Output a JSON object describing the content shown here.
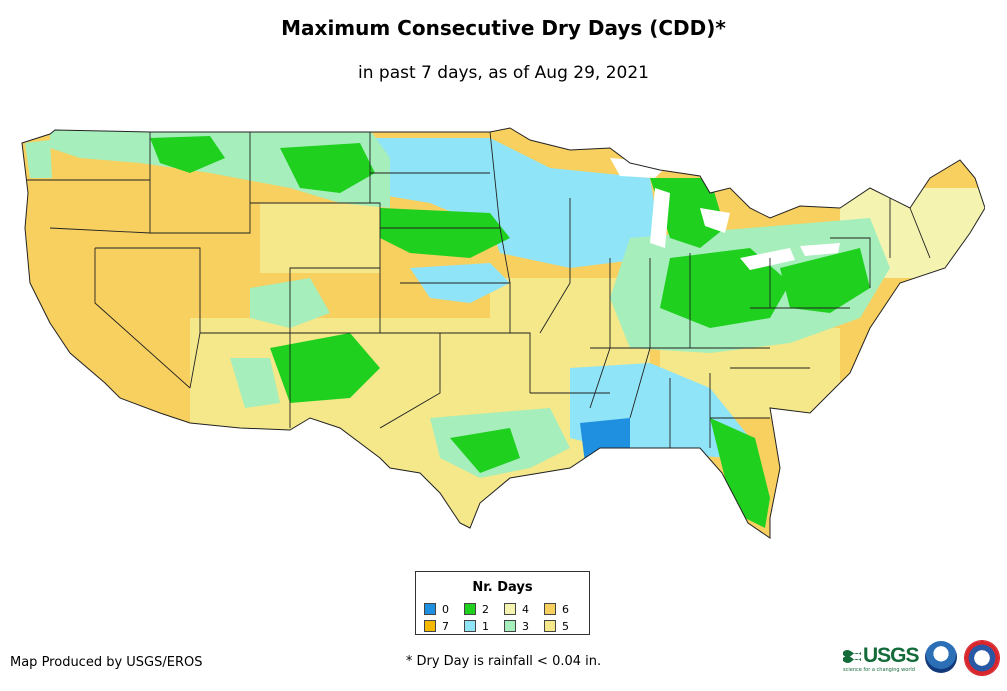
{
  "title": "Maximum Consecutive Dry Days (CDD)*",
  "subtitle": "in past 7 days, as of Aug 29, 2021",
  "legend": {
    "title": "Nr. Days",
    "items": [
      {
        "label": "0",
        "color": "#1f8fe0"
      },
      {
        "label": "2",
        "color": "#1fd01f"
      },
      {
        "label": "4",
        "color": "#f4f4b0"
      },
      {
        "label": "6",
        "color": "#f7d060"
      },
      {
        "label": "7",
        "color": "#f5b800"
      },
      {
        "label": "1",
        "color": "#8fe4f8"
      },
      {
        "label": "3",
        "color": "#a6eebb"
      },
      {
        "label": "5",
        "color": "#f4e88a"
      }
    ]
  },
  "footer": {
    "credit": "Map Produced by USGS/EROS",
    "note": "* Dry Day is rainfall < 0.04 in."
  },
  "logos": {
    "usgs": "USGS",
    "usgs_tagline": "science for a changing world"
  }
}
